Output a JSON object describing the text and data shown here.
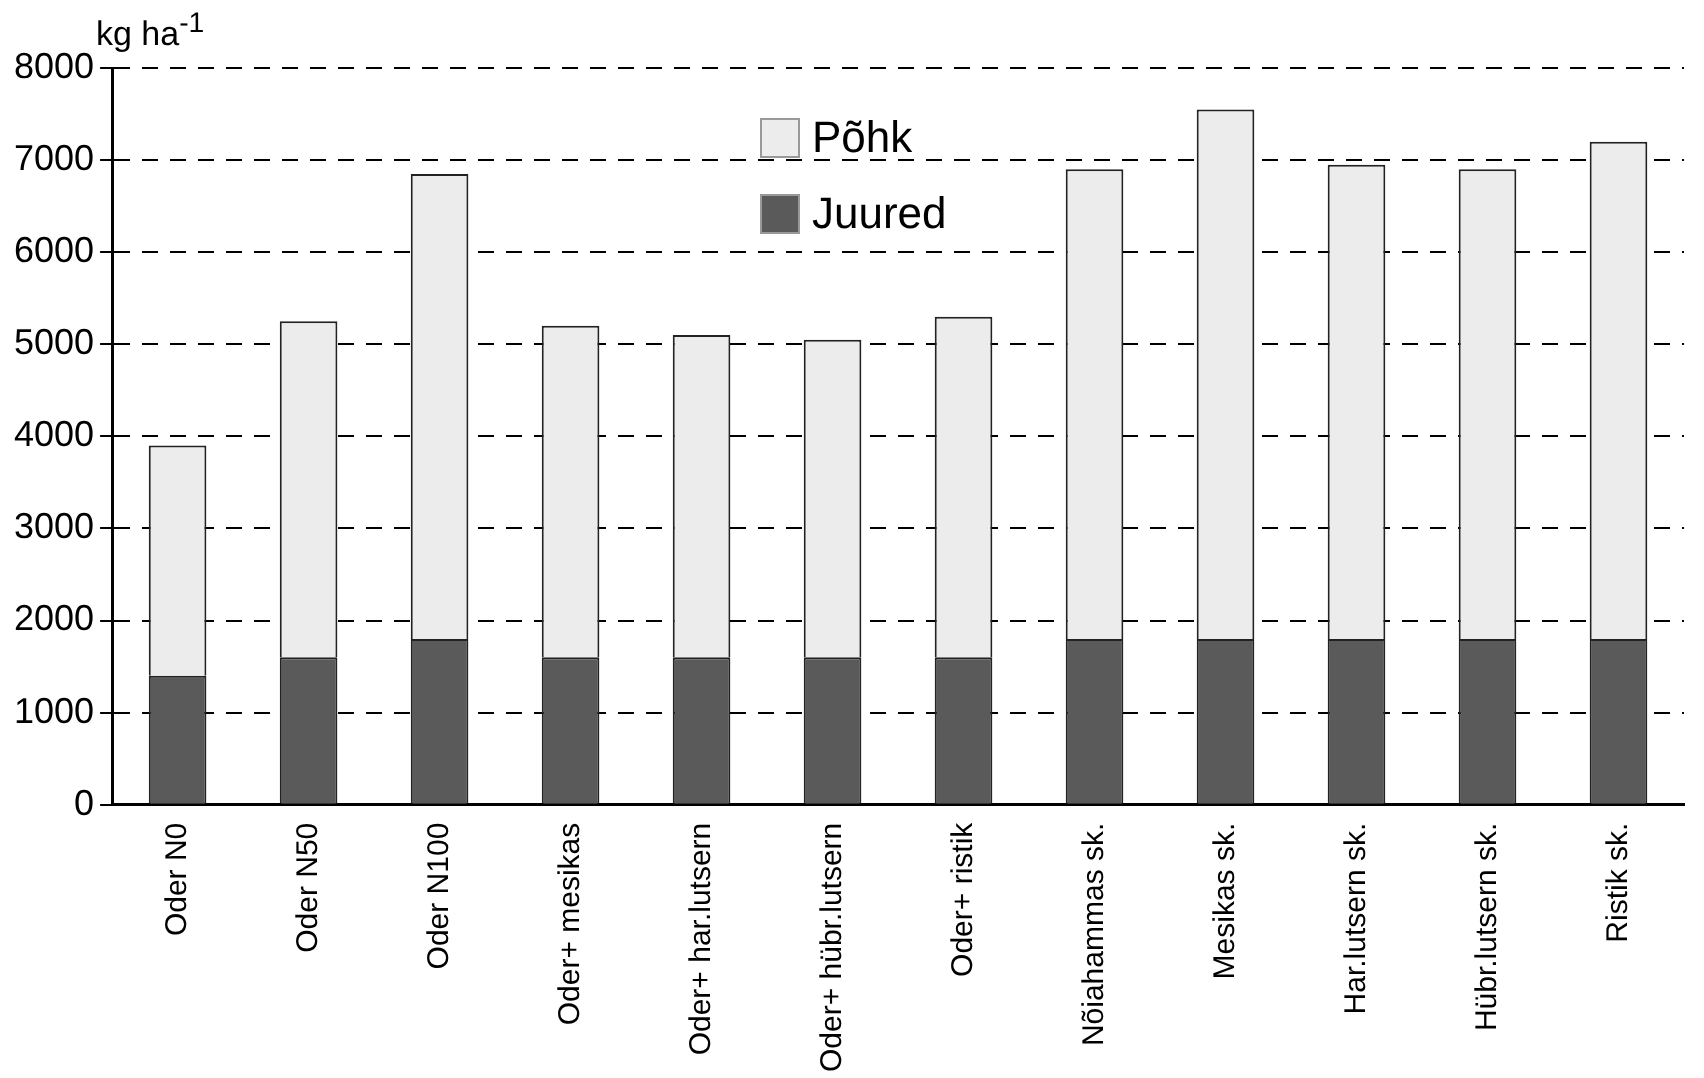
{
  "chart_data": {
    "type": "bar",
    "stacked": true,
    "ylabel": "kg ha$^{-1}$",
    "categories": [
      "Oder N0",
      "Oder N50",
      "Oder N100",
      "Oder+ mesikas",
      "Oder+ har.lutsern",
      "Oder+ hübr.lutsern",
      "Oder+ ristik",
      "Nõiahammas sk.",
      "Mesikas sk.",
      "Har.lutsern sk.",
      "Hübr.lutsern sk.",
      "Ristik sk."
    ],
    "series": [
      {
        "name": "Juured",
        "color": "#5a5a5a",
        "values": [
          1400,
          1600,
          1800,
          1600,
          1600,
          1600,
          1600,
          1800,
          1800,
          1800,
          1800,
          1800
        ]
      },
      {
        "name": "Põhk",
        "color": "#ececec",
        "values": [
          2500,
          3650,
          5050,
          3600,
          3500,
          3450,
          3700,
          5100,
          5750,
          5150,
          5100,
          5400
        ]
      }
    ],
    "ylim": [
      0,
      8000
    ],
    "yticks": [
      0,
      1000,
      2000,
      3000,
      4000,
      5000,
      6000,
      7000,
      8000
    ],
    "grid": "y",
    "legend": "top"
  }
}
